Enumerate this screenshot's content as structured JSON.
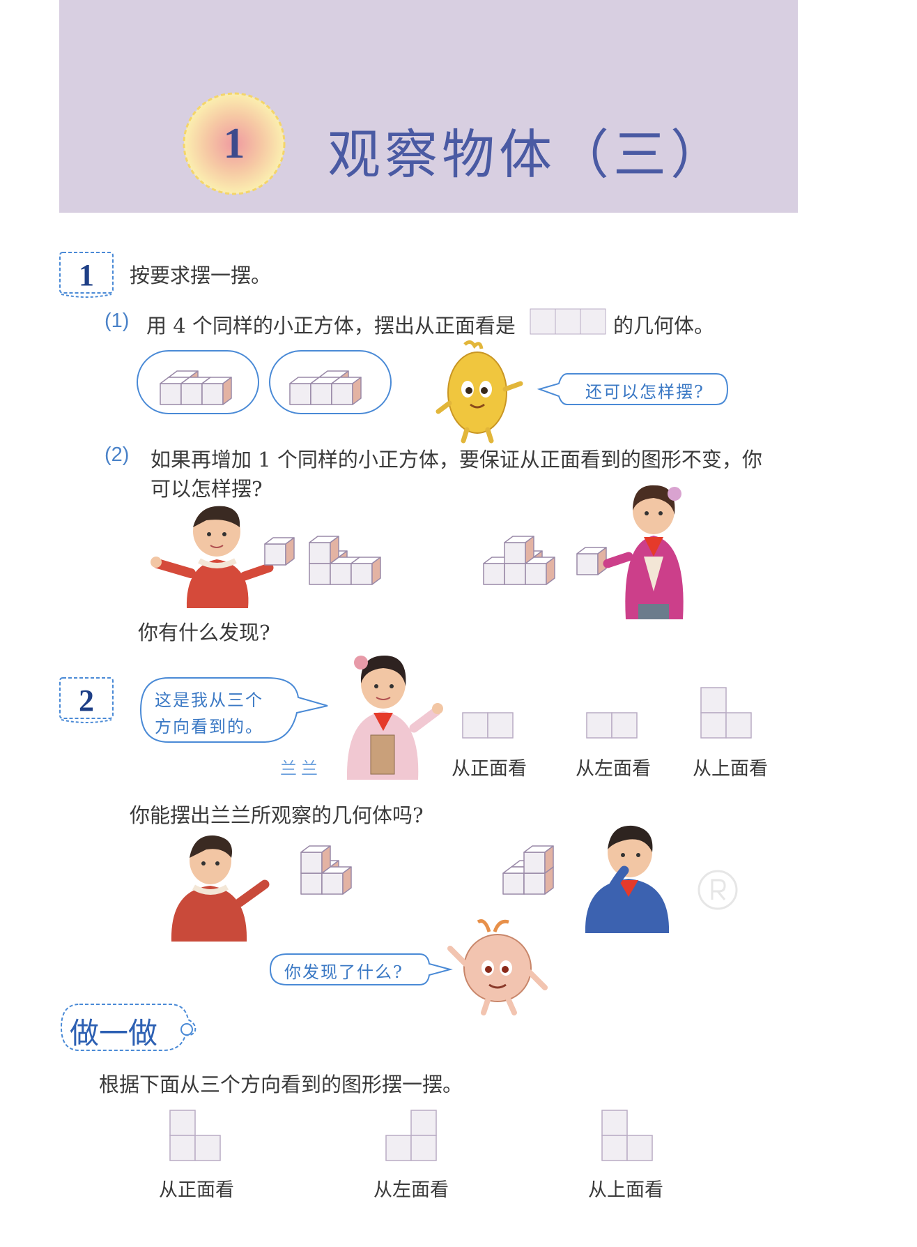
{
  "chapter": {
    "number": "1",
    "title": "观察物体（三）"
  },
  "example1": {
    "number": "1",
    "instruction": "按要求摆一摆。",
    "part1": {
      "label": "(1)",
      "text_before": "用 4 个同样的小正方体，摆出从正面看是",
      "text_after": "的几何体。"
    },
    "bubble": "还可以怎样摆?",
    "part2": {
      "label": "(2)",
      "line1": "如果再增加 1 个同样的小正方体，要保证从正面看到的图形不变，你",
      "line2": "可以怎样摆?"
    },
    "question": "你有什么发现?"
  },
  "example2": {
    "number": "2",
    "speech_line1": "这是我从三个",
    "speech_line2": "方向看到的。",
    "speaker": "兰兰",
    "views": [
      "从正面看",
      "从左面看",
      "从上面看"
    ],
    "question": "你能摆出兰兰所观察的几何体吗?",
    "bubble": "你发现了什么?"
  },
  "practice": {
    "title": "做一做",
    "instruction": "根据下面从三个方向看到的图形摆一摆。",
    "views": [
      "从正面看",
      "从左面看",
      "从上面看"
    ]
  },
  "colors": {
    "header_bg": "#d8cfe1",
    "title_blue": "#4a5aa3",
    "accent_blue": "#4a8ad6",
    "cube_stroke": "#9a8aa8",
    "cube_face": "#f1eef3",
    "cube_side": "#e3b3a3"
  }
}
